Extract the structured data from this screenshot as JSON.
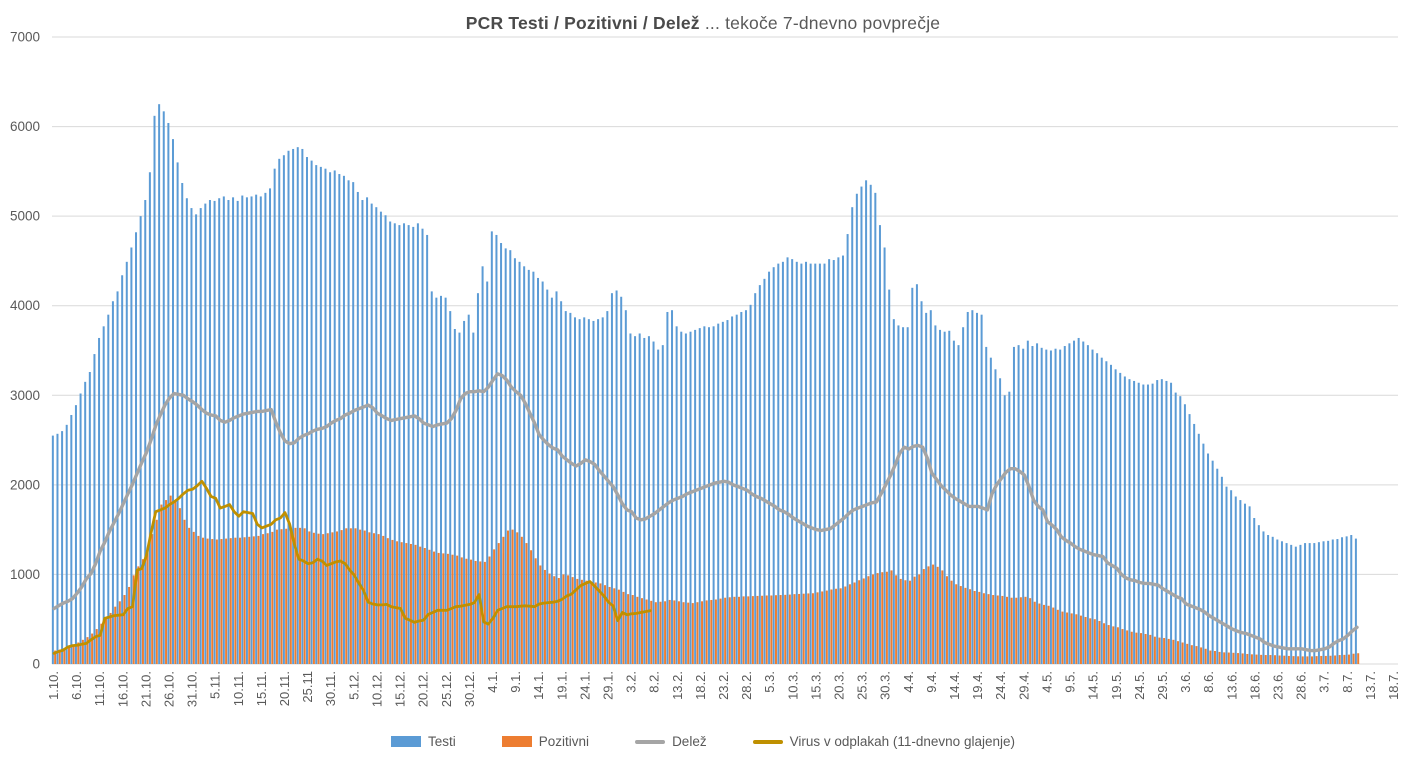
{
  "title": {
    "bold": "PCR Testi / Pozitivni / Delež",
    "rest": " ... tekoče 7-dnevno povprečje"
  },
  "chart_data": {
    "type": "bar",
    "subtype": "clustered-daily-bars-with-lines",
    "title": "PCR Testi / Pozitivni / Delež ... tekoče 7-dnevno povprečje",
    "xlabel": "",
    "ylabel": "",
    "ylim": [
      0,
      7000
    ],
    "y_ticks": [
      0,
      1000,
      2000,
      3000,
      4000,
      5000,
      6000,
      7000
    ],
    "grid": "horizontal",
    "legend_position": "bottom",
    "x_unit": "daily values; index 0 = 1.10., one value per day",
    "x_tick_every_days": 5,
    "x_tick_labels": [
      "1.10.",
      "6.10.",
      "11.10.",
      "16.10.",
      "21.10.",
      "26.10.",
      "31.10.",
      "5.11.",
      "10.11.",
      "15.11.",
      "20.11.",
      "25.11",
      "30.11.",
      "5.12.",
      "10.12.",
      "15.12.",
      "20.12.",
      "25.12.",
      "30.12.",
      "4.1.",
      "9.1.",
      "14.1.",
      "19.1.",
      "24.1.",
      "29.1.",
      "3.2.",
      "8.2.",
      "13.2.",
      "18.2.",
      "23.2.",
      "28.2.",
      "5.3.",
      "10.3.",
      "15.3.",
      "20.3.",
      "25.3.",
      "30.3.",
      "4.4.",
      "9.4.",
      "14.4.",
      "19.4.",
      "24.4.",
      "29.4.",
      "4.5.",
      "9.5.",
      "14.5.",
      "19.5.",
      "24.5.",
      "29.5.",
      "3.6.",
      "8.6.",
      "13.6.",
      "18.6.",
      "23.6.",
      "28.6.",
      "3.7.",
      "8.7.",
      "13.7.",
      "18.7."
    ],
    "x_axis_total_days": 292,
    "series": [
      {
        "name": "Testi",
        "type": "bar",
        "color": "#5B9BD5",
        "values": [
          2550,
          2570,
          2600,
          2670,
          2780,
          2890,
          3020,
          3150,
          3260,
          3460,
          3640,
          3770,
          3900,
          4050,
          4160,
          4340,
          4490,
          4650,
          4820,
          5000,
          5180,
          5490,
          6120,
          6250,
          6170,
          6040,
          5860,
          5600,
          5370,
          5200,
          5090,
          5020,
          5090,
          5140,
          5180,
          5170,
          5200,
          5220,
          5180,
          5210,
          5170,
          5230,
          5210,
          5220,
          5240,
          5220,
          5260,
          5310,
          5530,
          5640,
          5680,
          5730,
          5750,
          5770,
          5750,
          5660,
          5620,
          5570,
          5550,
          5530,
          5490,
          5510,
          5470,
          5450,
          5400,
          5380,
          5270,
          5180,
          5210,
          5140,
          5100,
          5050,
          5010,
          4940,
          4920,
          4900,
          4920,
          4900,
          4880,
          4920,
          4860,
          4790,
          4160,
          4090,
          4110,
          4090,
          3940,
          3740,
          3700,
          3830,
          3900,
          3700,
          4140,
          4440,
          4270,
          4830,
          4790,
          4700,
          4640,
          4620,
          4530,
          4490,
          4440,
          4400,
          4380,
          4310,
          4270,
          4180,
          4090,
          4160,
          4050,
          3940,
          3920,
          3870,
          3850,
          3870,
          3850,
          3830,
          3850,
          3870,
          3940,
          4140,
          4170,
          4100,
          3950,
          3690,
          3660,
          3690,
          3640,
          3660,
          3600,
          3510,
          3560,
          3930,
          3950,
          3770,
          3710,
          3690,
          3710,
          3730,
          3750,
          3770,
          3760,
          3770,
          3800,
          3820,
          3840,
          3880,
          3900,
          3930,
          3950,
          4010,
          4140,
          4230,
          4300,
          4380,
          4430,
          4470,
          4490,
          4540,
          4520,
          4490,
          4470,
          4490,
          4470,
          4470,
          4470,
          4470,
          4520,
          4510,
          4540,
          4560,
          4800,
          5100,
          5250,
          5330,
          5400,
          5350,
          5260,
          4900,
          4650,
          4180,
          3850,
          3780,
          3760,
          3760,
          4200,
          4240,
          4050,
          3920,
          3950,
          3780,
          3730,
          3710,
          3720,
          3610,
          3560,
          3760,
          3930,
          3950,
          3920,
          3900,
          3540,
          3420,
          3290,
          3190,
          3000,
          3040,
          3540,
          3560,
          3520,
          3610,
          3550,
          3580,
          3530,
          3510,
          3500,
          3520,
          3510,
          3550,
          3580,
          3610,
          3640,
          3600,
          3560,
          3510,
          3470,
          3420,
          3380,
          3340,
          3290,
          3250,
          3210,
          3180,
          3160,
          3140,
          3120,
          3120,
          3130,
          3170,
          3180,
          3160,
          3140,
          3030,
          2990,
          2900,
          2790,
          2680,
          2570,
          2460,
          2350,
          2270,
          2180,
          2090,
          1980,
          1940,
          1870,
          1830,
          1790,
          1760,
          1630,
          1550,
          1480,
          1440,
          1420,
          1390,
          1370,
          1350,
          1330,
          1310,
          1330,
          1350,
          1350,
          1350,
          1360,
          1370,
          1375,
          1390,
          1395,
          1415,
          1425,
          1440,
          1400
        ]
      },
      {
        "name": "Pozitivni",
        "type": "bar",
        "color": "#ED7D31",
        "values": [
          150,
          160,
          175,
          190,
          210,
          240,
          270,
          300,
          340,
          390,
          450,
          510,
          570,
          640,
          700,
          770,
          860,
          990,
          1090,
          1170,
          1270,
          1450,
          1610,
          1780,
          1830,
          1880,
          1810,
          1740,
          1610,
          1520,
          1475,
          1430,
          1410,
          1400,
          1395,
          1390,
          1395,
          1400,
          1405,
          1410,
          1410,
          1415,
          1420,
          1425,
          1430,
          1450,
          1460,
          1475,
          1500,
          1505,
          1510,
          1515,
          1520,
          1520,
          1515,
          1480,
          1465,
          1455,
          1450,
          1460,
          1470,
          1480,
          1495,
          1515,
          1515,
          1515,
          1500,
          1490,
          1470,
          1460,
          1450,
          1430,
          1405,
          1385,
          1370,
          1360,
          1350,
          1340,
          1330,
          1310,
          1295,
          1275,
          1255,
          1240,
          1235,
          1230,
          1220,
          1210,
          1190,
          1175,
          1165,
          1150,
          1145,
          1140,
          1200,
          1280,
          1350,
          1420,
          1490,
          1500,
          1470,
          1420,
          1350,
          1270,
          1180,
          1100,
          1050,
          1010,
          980,
          960,
          1000,
          990,
          970,
          950,
          940,
          930,
          920,
          910,
          900,
          880,
          860,
          845,
          830,
          805,
          780,
          770,
          750,
          735,
          720,
          705,
          690,
          695,
          700,
          715,
          710,
          700,
          690,
          685,
          680,
          690,
          700,
          710,
          715,
          720,
          730,
          740,
          745,
          750,
          750,
          755,
          755,
          758,
          760,
          762,
          765,
          765,
          768,
          770,
          772,
          775,
          780,
          782,
          785,
          788,
          790,
          800,
          810,
          820,
          832,
          840,
          845,
          865,
          890,
          910,
          935,
          955,
          980,
          1000,
          1015,
          1025,
          1030,
          1045,
          990,
          950,
          935,
          930,
          975,
          1000,
          1060,
          1090,
          1110,
          1085,
          1045,
          980,
          930,
          890,
          870,
          850,
          835,
          815,
          805,
          790,
          780,
          770,
          765,
          760,
          750,
          740,
          740,
          745,
          750,
          735,
          695,
          675,
          660,
          650,
          630,
          605,
          585,
          575,
          565,
          555,
          540,
          525,
          510,
          500,
          480,
          455,
          435,
          420,
          410,
          390,
          375,
          360,
          350,
          345,
          335,
          325,
          305,
          295,
          290,
          280,
          270,
          255,
          240,
          225,
          210,
          200,
          185,
          170,
          150,
          145,
          135,
          130,
          128,
          125,
          122,
          118,
          112,
          108,
          105,
          102,
          100,
          100,
          98,
          95,
          93,
          90,
          88,
          86,
          85,
          85,
          85,
          88,
          90,
          90,
          92,
          95,
          100,
          102,
          105,
          115,
          120
        ]
      },
      {
        "name": "Delež",
        "type": "line",
        "color": "#A5A5A5",
        "values": [
          620,
          650,
          680,
          700,
          730,
          790,
          860,
          950,
          1010,
          1120,
          1260,
          1360,
          1480,
          1580,
          1680,
          1790,
          1900,
          2010,
          2130,
          2250,
          2360,
          2500,
          2660,
          2780,
          2890,
          2970,
          3020,
          3010,
          3000,
          2960,
          2930,
          2890,
          2840,
          2800,
          2780,
          2770,
          2720,
          2700,
          2720,
          2750,
          2770,
          2790,
          2800,
          2810,
          2820,
          2820,
          2830,
          2840,
          2700,
          2580,
          2490,
          2460,
          2470,
          2520,
          2550,
          2570,
          2600,
          2620,
          2630,
          2650,
          2690,
          2720,
          2740,
          2780,
          2800,
          2830,
          2850,
          2870,
          2890,
          2860,
          2800,
          2770,
          2740,
          2720,
          2730,
          2740,
          2750,
          2760,
          2770,
          2740,
          2690,
          2670,
          2650,
          2670,
          2680,
          2690,
          2740,
          2830,
          2960,
          3020,
          3040,
          3040,
          3050,
          3040,
          3090,
          3170,
          3240,
          3220,
          3170,
          3090,
          3040,
          3000,
          2910,
          2800,
          2690,
          2560,
          2500,
          2450,
          2410,
          2390,
          2320,
          2280,
          2240,
          2210,
          2240,
          2280,
          2260,
          2230,
          2160,
          2100,
          2040,
          1980,
          1890,
          1790,
          1720,
          1700,
          1630,
          1610,
          1620,
          1650,
          1680,
          1720,
          1760,
          1800,
          1830,
          1850,
          1870,
          1900,
          1920,
          1940,
          1960,
          1980,
          2000,
          2020,
          2030,
          2040,
          2030,
          2000,
          1980,
          1960,
          1940,
          1900,
          1870,
          1850,
          1820,
          1790,
          1760,
          1720,
          1700,
          1670,
          1630,
          1600,
          1570,
          1540,
          1520,
          1500,
          1490,
          1500,
          1510,
          1550,
          1590,
          1630,
          1680,
          1720,
          1740,
          1760,
          1780,
          1800,
          1810,
          1900,
          2000,
          2100,
          2220,
          2350,
          2420,
          2400,
          2430,
          2440,
          2420,
          2300,
          2130,
          2060,
          1990,
          1940,
          1890,
          1850,
          1820,
          1790,
          1760,
          1760,
          1760,
          1740,
          1720,
          1900,
          2000,
          2070,
          2140,
          2180,
          2180,
          2150,
          2110,
          1980,
          1830,
          1760,
          1720,
          1590,
          1550,
          1500,
          1420,
          1380,
          1350,
          1310,
          1280,
          1260,
          1240,
          1220,
          1210,
          1200,
          1130,
          1100,
          1070,
          1000,
          960,
          940,
          930,
          910,
          900,
          900,
          890,
          880,
          840,
          810,
          780,
          750,
          730,
          670,
          650,
          630,
          610,
          580,
          540,
          510,
          480,
          450,
          420,
          390,
          370,
          350,
          340,
          320,
          300,
          280,
          240,
          220,
          200,
          190,
          180,
          170,
          170,
          170,
          170,
          160,
          150,
          150,
          160,
          170,
          190,
          230,
          260,
          280,
          320,
          370,
          410
        ]
      },
      {
        "name": "Virus v odplakah (11-dnevno glajenje)",
        "type": "line",
        "color": "#BF9000",
        "values": [
          120,
          140,
          155,
          190,
          205,
          210,
          220,
          230,
          270,
          305,
          320,
          510,
          525,
          540,
          545,
          550,
          620,
          640,
          1050,
          1065,
          1210,
          1460,
          1700,
          1720,
          1740,
          1780,
          1810,
          1850,
          1900,
          1940,
          1950,
          1990,
          2040,
          1960,
          1870,
          1850,
          1740,
          1760,
          1780,
          1700,
          1650,
          1700,
          1690,
          1680,
          1560,
          1520,
          1540,
          1560,
          1610,
          1630,
          1690,
          1560,
          1340,
          1170,
          1150,
          1120,
          1130,
          1170,
          1150,
          1100,
          1120,
          1140,
          1150,
          1120,
          1050,
          990,
          900,
          820,
          690,
          670,
          660,
          660,
          665,
          640,
          630,
          620,
          510,
          490,
          465,
          480,
          490,
          555,
          575,
          600,
          600,
          600,
          620,
          640,
          645,
          655,
          665,
          685,
          775,
          470,
          445,
          510,
          600,
          620,
          640,
          640,
          640,
          645,
          650,
          645,
          640,
          670,
          680,
          685,
          690,
          700,
          725,
          760,
          780,
          830,
          875,
          900,
          920,
          870,
          815,
          760,
          690,
          650,
          485,
          575,
          550,
          560,
          565,
          575,
          585,
          595
        ]
      }
    ]
  },
  "legend": {
    "items": [
      {
        "label": "Testi",
        "color": "#5B9BD5",
        "swatch": "bar"
      },
      {
        "label": "Pozitivni",
        "color": "#ED7D31",
        "swatch": "bar"
      },
      {
        "label": "Delež",
        "color": "#A5A5A5",
        "swatch": "line"
      },
      {
        "label": "Virus v odplakah (11-dnevno glajenje)",
        "color": "#BF9000",
        "swatch": "line"
      }
    ]
  },
  "colors": {
    "grid": "#D9D9D9",
    "axis": "#D9D9D9",
    "tick_text": "#595959",
    "background": "#FFFFFF"
  }
}
